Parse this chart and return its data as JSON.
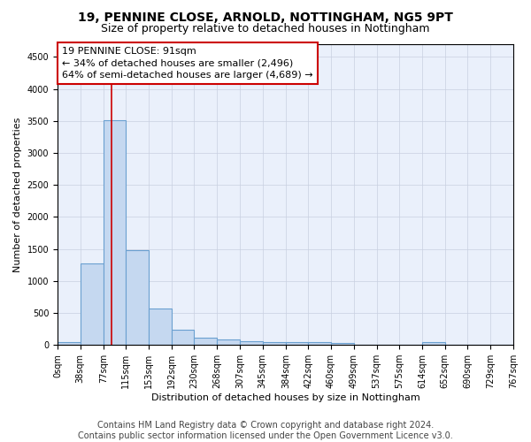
{
  "title": "19, PENNINE CLOSE, ARNOLD, NOTTINGHAM, NG5 9PT",
  "subtitle": "Size of property relative to detached houses in Nottingham",
  "xlabel": "Distribution of detached houses by size in Nottingham",
  "ylabel": "Number of detached properties",
  "bar_color": "#c5d8f0",
  "bar_edge_color": "#6aa0d0",
  "grid_color": "#c8d0e0",
  "background_color": "#eaf0fb",
  "vline_color": "#cc0000",
  "vline_x": 91,
  "bin_edges": [
    0,
    38,
    77,
    115,
    153,
    192,
    230,
    268,
    307,
    345,
    384,
    422,
    460,
    499,
    537,
    575,
    614,
    652,
    690,
    729,
    767
  ],
  "bar_heights": [
    40,
    1270,
    3510,
    1475,
    570,
    240,
    115,
    85,
    55,
    50,
    45,
    40,
    35,
    0,
    0,
    0,
    50,
    0,
    0,
    0
  ],
  "annotation_line1": "19 PENNINE CLOSE: 91sqm",
  "annotation_line2": "← 34% of detached houses are smaller (2,496)",
  "annotation_line3": "64% of semi-detached houses are larger (4,689) →",
  "annotation_box_color": "#cc0000",
  "ylim": [
    0,
    4700
  ],
  "yticks": [
    0,
    500,
    1000,
    1500,
    2000,
    2500,
    3000,
    3500,
    4000,
    4500
  ],
  "footer_line1": "Contains HM Land Registry data © Crown copyright and database right 2024.",
  "footer_line2": "Contains public sector information licensed under the Open Government Licence v3.0.",
  "title_fontsize": 10,
  "subtitle_fontsize": 9,
  "axis_label_fontsize": 8,
  "tick_fontsize": 7,
  "annotation_fontsize": 8,
  "footer_fontsize": 7
}
